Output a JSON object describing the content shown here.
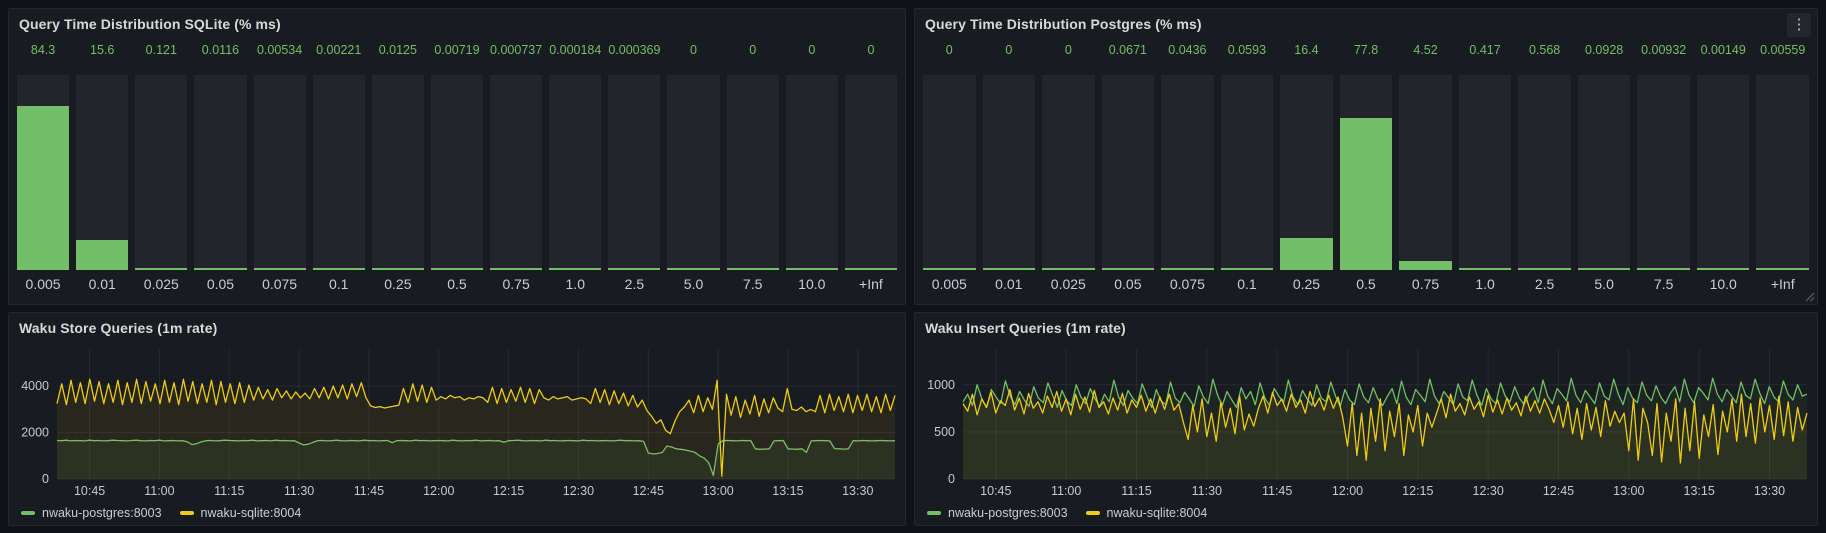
{
  "colors": {
    "green": "#73bf69",
    "yellow": "#f0cc16",
    "panel_bg": "#181b1f",
    "page_bg": "#111217",
    "bar_track": "#22252b",
    "grid": "rgba(204,204,220,0.09)",
    "axis_text": "#c8c8d2"
  },
  "icons": {
    "panel_menu": "⋮"
  },
  "chart_data": [
    {
      "type": "bar",
      "title": "Query Time Distribution SQLite (% ms)",
      "categories": [
        "0.005",
        "0.01",
        "0.025",
        "0.05",
        "0.075",
        "0.1",
        "0.25",
        "0.5",
        "0.75",
        "1.0",
        "2.5",
        "5.0",
        "7.5",
        "10.0",
        "+Inf"
      ],
      "values": [
        84.3,
        15.6,
        0.121,
        0.0116,
        0.00534,
        0.00221,
        0.0125,
        0.00719,
        0.000737,
        0.000184,
        0.000369,
        0,
        0,
        0,
        0
      ],
      "value_labels": [
        "84.3",
        "15.6",
        "0.121",
        "0.0116",
        "0.00534",
        "0.00221",
        "0.0125",
        "0.00719",
        "0.000737",
        "0.000184",
        "0.000369",
        "0",
        "0",
        "0",
        "0"
      ],
      "ylim": [
        0,
        100
      ],
      "bar_color": "#73bf69",
      "xlabel": "",
      "ylabel": ""
    },
    {
      "type": "bar",
      "title": "Query Time Distribution Postgres (% ms)",
      "categories": [
        "0.005",
        "0.01",
        "0.025",
        "0.05",
        "0.075",
        "0.1",
        "0.25",
        "0.5",
        "0.75",
        "1.0",
        "2.5",
        "5.0",
        "7.5",
        "10.0",
        "+Inf"
      ],
      "values": [
        0,
        0,
        0,
        0.0671,
        0.0436,
        0.0593,
        16.4,
        77.8,
        4.52,
        0.417,
        0.568,
        0.0928,
        0.00932,
        0.00149,
        0.00559
      ],
      "value_labels": [
        "0",
        "0",
        "0",
        "0.0671",
        "0.0436",
        "0.0593",
        "16.4",
        "77.8",
        "4.52",
        "0.417",
        "0.568",
        "0.0928",
        "0.00932",
        "0.00149",
        "0.00559"
      ],
      "ylim": [
        0,
        100
      ],
      "bar_color": "#73bf69",
      "xlabel": "",
      "ylabel": ""
    },
    {
      "type": "line",
      "title": "Waku Store Queries (1m rate)",
      "ylim": [
        0,
        5600
      ],
      "yticks": [
        0,
        2000,
        4000
      ],
      "x_ticks": {
        "labels": [
          "10:45",
          "11:00",
          "11:15",
          "11:30",
          "11:45",
          "12:00",
          "12:15",
          "12:30",
          "12:45",
          "13:00",
          "13:15",
          "13:30"
        ],
        "minutes": [
          7,
          22,
          37,
          52,
          67,
          82,
          97,
          112,
          127,
          142,
          157,
          172
        ],
        "total": 180
      },
      "series": [
        {
          "name": "nwaku-postgres:8003",
          "color": "#73bf69",
          "values": [
            1660,
            1650,
            1670,
            1640,
            1660,
            1650,
            1640,
            1670,
            1650,
            1660,
            1640,
            1650,
            1670,
            1660,
            1650,
            1640,
            1660,
            1670,
            1650,
            1640,
            1660,
            1650,
            1670,
            1640,
            1650,
            1660,
            1640,
            1650,
            1600,
            1480,
            1520,
            1600,
            1650,
            1660,
            1640,
            1650,
            1670,
            1660,
            1650,
            1640,
            1660,
            1650,
            1670,
            1640,
            1650,
            1660,
            1640,
            1670,
            1650,
            1660,
            1640,
            1650,
            1550,
            1470,
            1500,
            1580,
            1650,
            1660,
            1640,
            1650,
            1670,
            1650,
            1640,
            1660,
            1650,
            1640,
            1670,
            1650,
            1660,
            1640,
            1650,
            1660,
            1570,
            1650,
            1660,
            1650,
            1640,
            1670,
            1650,
            1660,
            1640,
            1650,
            1660,
            1650,
            1640,
            1670,
            1650,
            1640,
            1660,
            1650,
            1670,
            1640,
            1650,
            1660,
            1640,
            1650,
            1580,
            1650,
            1660,
            1670,
            1650,
            1640,
            1660,
            1650,
            1640,
            1670,
            1650,
            1660,
            1640,
            1650,
            1660,
            1650,
            1640,
            1670,
            1650,
            1660,
            1640,
            1650,
            1660,
            1640,
            1650,
            1670,
            1650,
            1660,
            1640,
            1650,
            1620,
            1120,
            1080,
            1100,
            1140,
            1420,
            1380,
            1300,
            1280,
            1250,
            1200,
            1150,
            1000,
            900,
            700,
            150,
            1500,
            1650,
            1660,
            1650,
            1640,
            1660,
            1650,
            1660,
            1300,
            1280,
            1290,
            1300,
            1640,
            1650,
            1660,
            1300,
            1290,
            1280,
            1300,
            1150,
            1640,
            1650,
            1660,
            1650,
            1640,
            1310,
            1300,
            1290,
            1300,
            1650,
            1640,
            1660,
            1650,
            1640,
            1650,
            1660,
            1650,
            1640,
            1650
          ]
        },
        {
          "name": "nwaku-sqlite:8004",
          "color": "#f0cc16",
          "values": [
            3250,
            4100,
            3200,
            4250,
            3300,
            4150,
            3250,
            4300,
            3350,
            4200,
            3250,
            4100,
            3300,
            4250,
            3200,
            4150,
            3300,
            4300,
            3250,
            4200,
            3350,
            4100,
            3250,
            4250,
            3300,
            4150,
            3200,
            4300,
            3350,
            4200,
            3250,
            4100,
            3300,
            4250,
            3200,
            4200,
            3300,
            4100,
            3250,
            4150,
            3300,
            4050,
            3400,
            3950,
            3450,
            3850,
            3400,
            3900,
            3500,
            3800,
            3450,
            3750,
            3500,
            3700,
            3450,
            3900,
            3500,
            3950,
            3450,
            4000,
            3500,
            4050,
            3450,
            4100,
            3550,
            4150,
            3500,
            3150,
            3080,
            3120,
            3060,
            3100,
            3140,
            3180,
            3900,
            3300,
            4100,
            3350,
            4050,
            3300,
            3950,
            3400,
            3550,
            3450,
            3600,
            3500,
            3550,
            3400,
            3500,
            3450,
            3550,
            3500,
            3300,
            3950,
            3250,
            3900,
            3300,
            3850,
            3350,
            3950,
            3300,
            3900,
            3250,
            3850,
            3500,
            3400,
            3550,
            3450,
            3500,
            3550,
            3400,
            3450,
            3500,
            3450,
            3250,
            3900,
            3300,
            3850,
            3200,
            3800,
            3250,
            3700,
            3150,
            3600,
            3100,
            3400,
            2950,
            2700,
            2400,
            2550,
            2100,
            1950,
            2500,
            2900,
            3100,
            3400,
            2850,
            3600,
            2900,
            3500,
            3000,
            4250,
            120,
            3650,
            2750,
            3550,
            2650,
            3400,
            2800,
            3600,
            2700,
            3450,
            2850,
            3500,
            3050,
            2900,
            3900,
            3000,
            2950,
            3100,
            2900,
            3000,
            2900,
            3600,
            2850,
            3650,
            2950,
            3550,
            2900,
            3650,
            2850,
            3600,
            2950,
            3650,
            2900,
            3550,
            2850,
            3650,
            2950,
            3600
          ]
        }
      ],
      "legend_position": "bottom",
      "grid": true
    },
    {
      "type": "line",
      "title": "Waku Insert Queries (1m rate)",
      "ylim": [
        0,
        1380
      ],
      "yticks": [
        0,
        500,
        1000
      ],
      "x_ticks": {
        "labels": [
          "10:45",
          "11:00",
          "11:15",
          "11:30",
          "11:45",
          "12:00",
          "12:15",
          "12:30",
          "12:45",
          "13:00",
          "13:15",
          "13:30"
        ],
        "minutes": [
          7,
          22,
          37,
          52,
          67,
          82,
          97,
          112,
          127,
          142,
          157,
          172
        ],
        "total": 180
      },
      "series": [
        {
          "name": "nwaku-postgres:8003",
          "color": "#73bf69",
          "values": [
            820,
            900,
            780,
            1000,
            850,
            760,
            950,
            870,
            800,
            1040,
            880,
            790,
            930,
            840,
            770,
            980,
            860,
            810,
            1020,
            890,
            760,
            940,
            830,
            780,
            1000,
            870,
            800,
            960,
            850,
            770,
            900,
            820,
            1050,
            870,
            780,
            940,
            860,
            800,
            1010,
            880,
            760,
            950,
            830,
            790,
            1030,
            860,
            810,
            920,
            850,
            770,
            990,
            870,
            800,
            1060,
            890,
            780,
            930,
            840,
            760,
            970,
            850,
            930,
            790,
            1020,
            860,
            780,
            960,
            880,
            810,
            1050,
            870,
            790,
            940,
            850,
            780,
            1000,
            860,
            820,
            1030,
            880,
            770,
            950,
            840,
            790,
            1010,
            870,
            810,
            970,
            850,
            780,
            880,
            960,
            800,
            1040,
            870,
            790,
            950,
            890,
            820,
            1060,
            880,
            800,
            930,
            860,
            790,
            1010,
            870,
            830,
            1050,
            890,
            780,
            960,
            850,
            800,
            1020,
            880,
            820,
            980,
            860,
            790,
            900,
            970,
            810,
            1050,
            880,
            800,
            960,
            900,
            830,
            1070,
            890,
            810,
            940,
            870,
            800,
            1020,
            880,
            840,
            1060,
            900,
            790,
            970,
            860,
            810,
            1030,
            890,
            830,
            990,
            870,
            800,
            910,
            980,
            820,
            1060,
            890,
            810,
            970,
            910,
            840,
            1070,
            900,
            820,
            950,
            880,
            810,
            1030,
            890,
            850,
            1060,
            910,
            800,
            980,
            870,
            820,
            1040,
            900,
            840,
            1000,
            880,
            900
          ]
        },
        {
          "name": "nwaku-sqlite:8004",
          "color": "#f0cc16",
          "values": [
            800,
            720,
            900,
            680,
            850,
            760,
            920,
            700,
            830,
            780,
            950,
            730,
            860,
            690,
            910,
            750,
            820,
            700,
            880,
            760,
            930,
            720,
            850,
            680,
            900,
            740,
            870,
            710,
            940,
            760,
            820,
            690,
            860,
            730,
            910,
            700,
            840,
            760,
            890,
            720,
            850,
            700,
            870,
            740,
            900,
            730,
            800,
            600,
            420,
            780,
            500,
            850,
            450,
            700,
            400,
            820,
            550,
            750,
            480,
            880,
            520,
            690,
            560,
            750,
            880,
            700,
            920,
            780,
            850,
            720,
            900,
            760,
            840,
            700,
            930,
            770,
            860,
            730,
            890,
            750,
            870,
            650,
            350,
            800,
            250,
            700,
            200,
            750,
            400,
            850,
            300,
            720,
            450,
            800,
            250,
            680,
            500,
            780,
            350,
            700,
            550,
            700,
            850,
            650,
            900,
            720,
            800,
            680,
            870,
            740,
            820,
            660,
            890,
            710,
            840,
            690,
            860,
            730,
            810,
            670,
            880,
            720,
            830,
            700,
            850,
            740,
            600,
            780,
            550,
            820,
            480,
            750,
            420,
            800,
            520,
            760,
            450,
            830,
            560,
            720,
            600,
            700,
            300,
            850,
            200,
            750,
            600,
            250,
            800,
            180,
            700,
            400,
            850,
            170,
            750,
            300,
            820,
            220,
            680,
            450,
            790,
            260,
            720,
            500,
            850,
            400,
            900,
            450,
            800,
            380,
            860,
            500,
            780,
            420,
            880,
            460,
            820,
            400,
            760,
            520,
            700
          ]
        }
      ],
      "legend_position": "bottom",
      "grid": true
    }
  ]
}
